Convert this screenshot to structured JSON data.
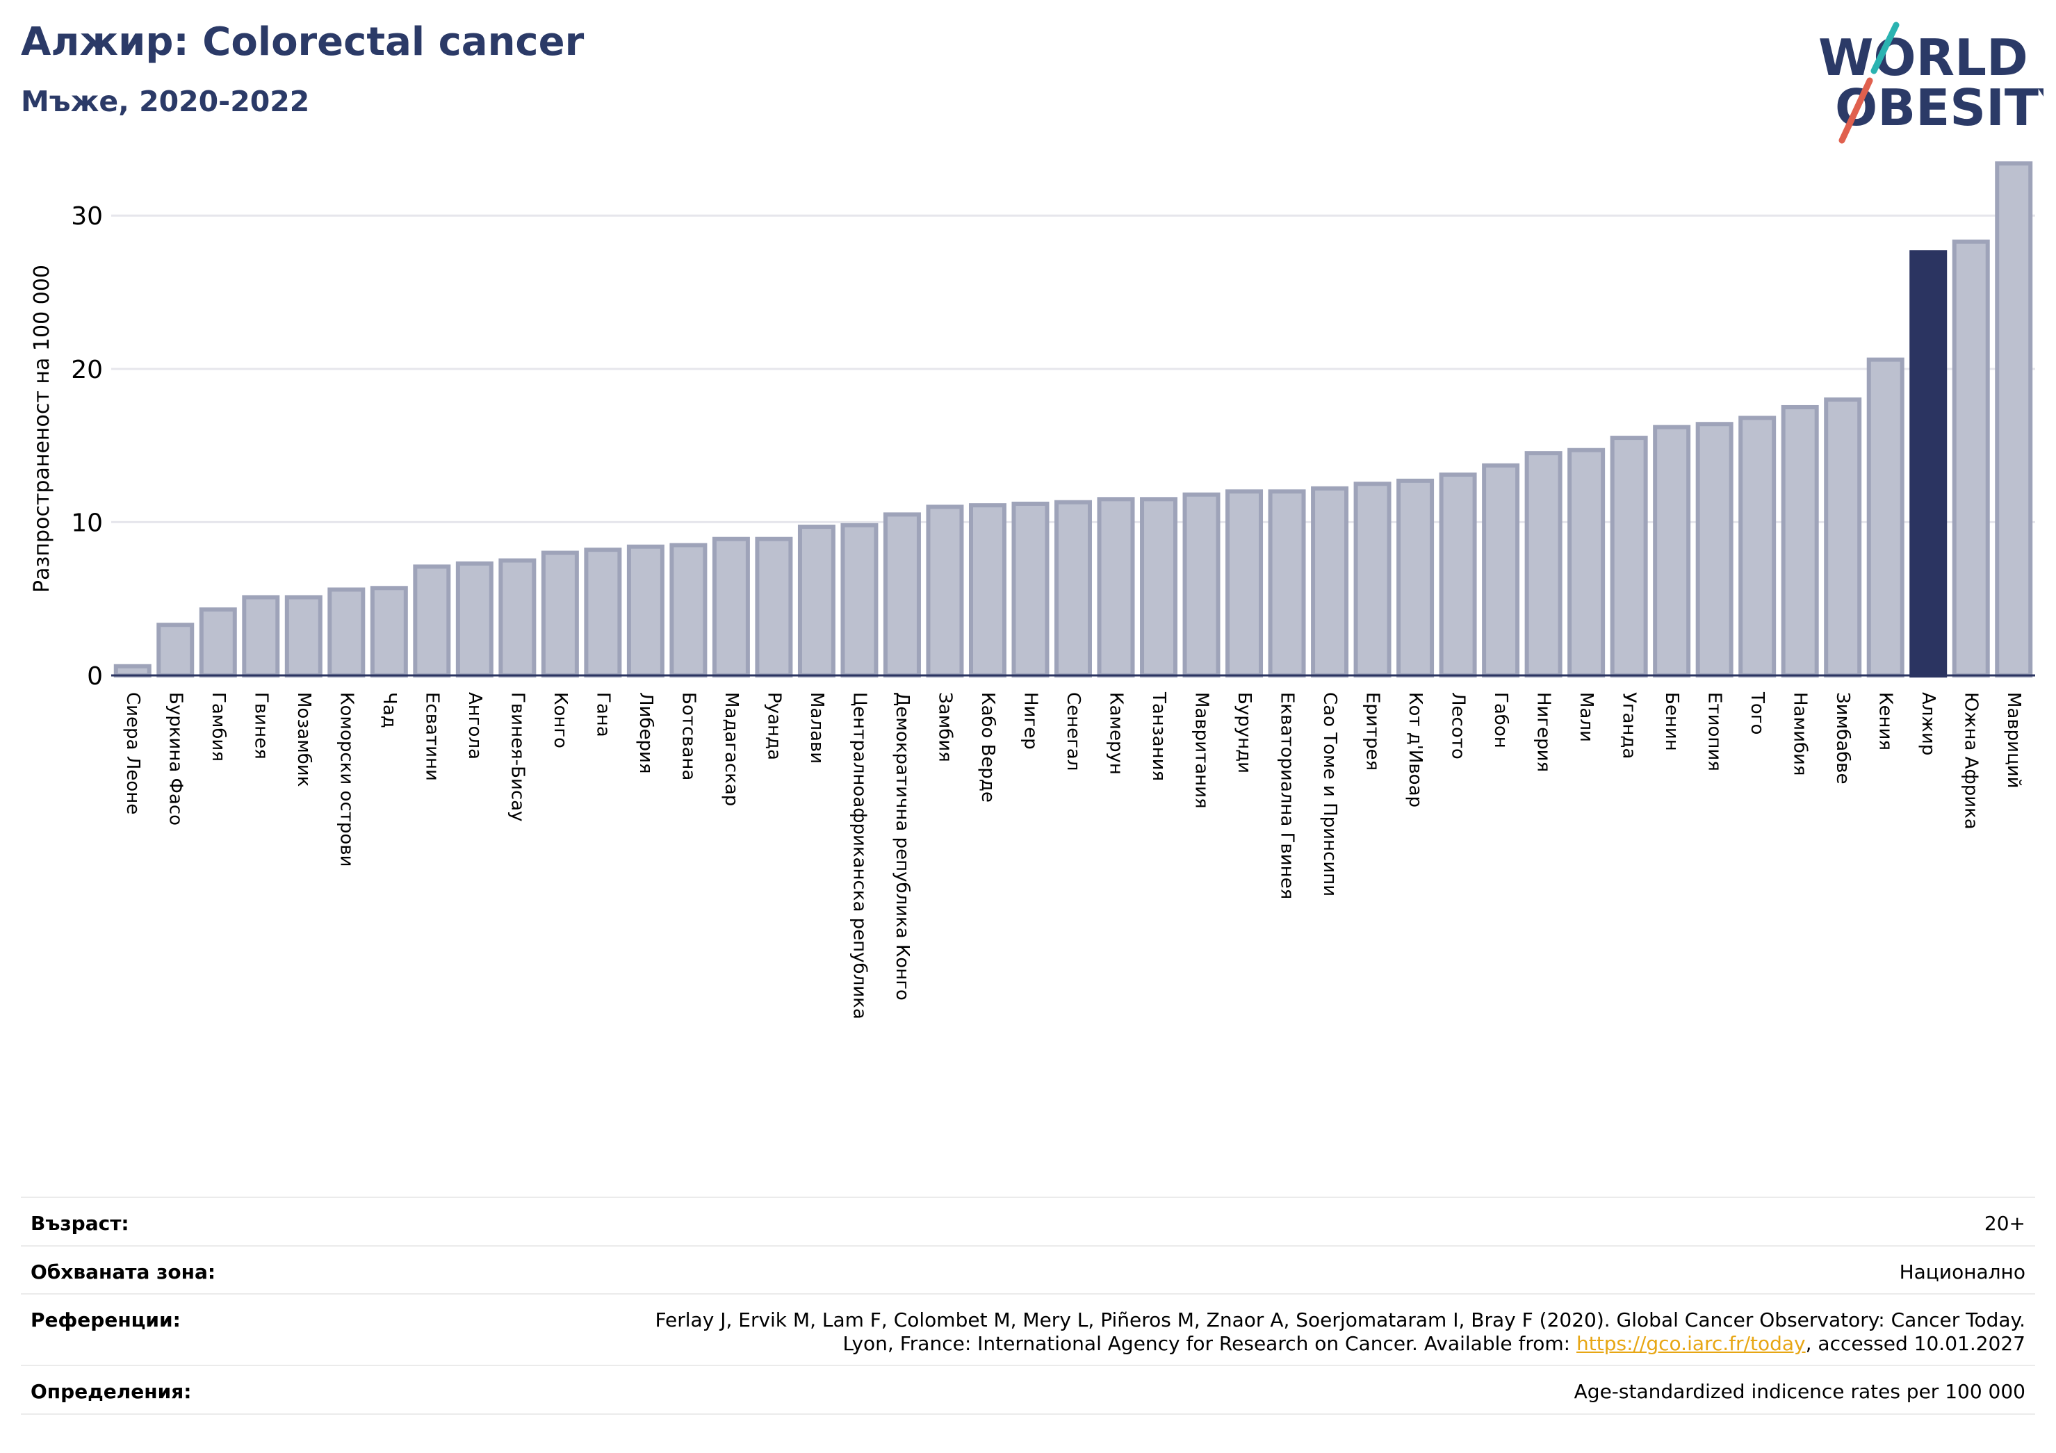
{
  "header": {
    "title": "Алжир: Colorectal cancer",
    "subtitle": "Мъже, 2020-2022"
  },
  "logo": {
    "line1": "WORLD",
    "line2": "OBESITY"
  },
  "colors": {
    "highlight": "#2b3461",
    "bar_fill": "#bcc0cf",
    "bar_stroke": "#9ea3b9",
    "title": "#2b3a67",
    "link": "#e7a614",
    "logo_teal": "#2ab3b1",
    "logo_red": "#e0604e"
  },
  "chart_data": {
    "type": "bar",
    "ylabel": "Разпространеност  на 100 000",
    "ylim": [
      0,
      34
    ],
    "yticks": [
      0,
      10,
      20,
      30
    ],
    "grid": true,
    "highlight": "Алжир",
    "categories": [
      "Сиера Леоне",
      "Буркина Фасо",
      "Гамбия",
      "Гвинея",
      "Мозамбик",
      "Коморски острови",
      "Чад",
      "Есватини",
      "Ангола",
      "Гвинея-Бисау",
      "Конго",
      "Гана",
      "Либерия",
      "Ботсвана",
      "Мадагаскар",
      "Руанда",
      "Малави",
      "Централноафриканска република",
      "Демократична република Конго",
      "Замбия",
      "Кабо Верде",
      "Нигер",
      "Сенегал",
      "Камерун",
      "Танзания",
      "Мавритания",
      "Бурунди",
      "Екваториална Гвинея",
      "Сао Томе и Принсипи",
      "Еритрея",
      "Кот д'Ивоар",
      "Лесото",
      "Габон",
      "Нигерия",
      "Мали",
      "Уганда",
      "Бенин",
      "Етиопия",
      "Того",
      "Намибия",
      "Зимбабве",
      "Кения",
      "Алжир",
      "Южна Африка",
      "Мавриций"
    ],
    "values": [
      0.6,
      3.3,
      4.3,
      5.1,
      5.1,
      5.6,
      5.7,
      7.1,
      7.3,
      7.5,
      8.0,
      8.2,
      8.4,
      8.5,
      8.9,
      8.9,
      9.7,
      9.8,
      10.5,
      11.0,
      11.1,
      11.2,
      11.3,
      11.5,
      11.5,
      11.8,
      12.0,
      12.0,
      12.2,
      12.5,
      12.7,
      13.1,
      13.7,
      14.5,
      14.7,
      15.5,
      16.2,
      16.4,
      16.8,
      17.5,
      18.0,
      20.6,
      27.6,
      28.3,
      33.4
    ]
  },
  "meta": {
    "age_label": "Възраст:",
    "age_value": "20+",
    "area_label": "Обхваната зона:",
    "area_value": "Национално",
    "refs_label": "Референции:",
    "refs_line1": "Ferlay J, Ervik M, Lam F, Colombet M, Mery L, Piñeros M, Znaor A, Soerjomataram I, Bray F (2020). Global Cancer Observatory: Cancer Today.",
    "refs_line2_pre": "Lyon, France: International Agency for Research on Cancer. Available from: ",
    "refs_link": "https://gco.iarc.fr/today",
    "refs_line2_post": ", accessed 10.01.2027",
    "def_label": "Определения:",
    "def_value": "Age-standardized indicence rates per 100 000"
  }
}
